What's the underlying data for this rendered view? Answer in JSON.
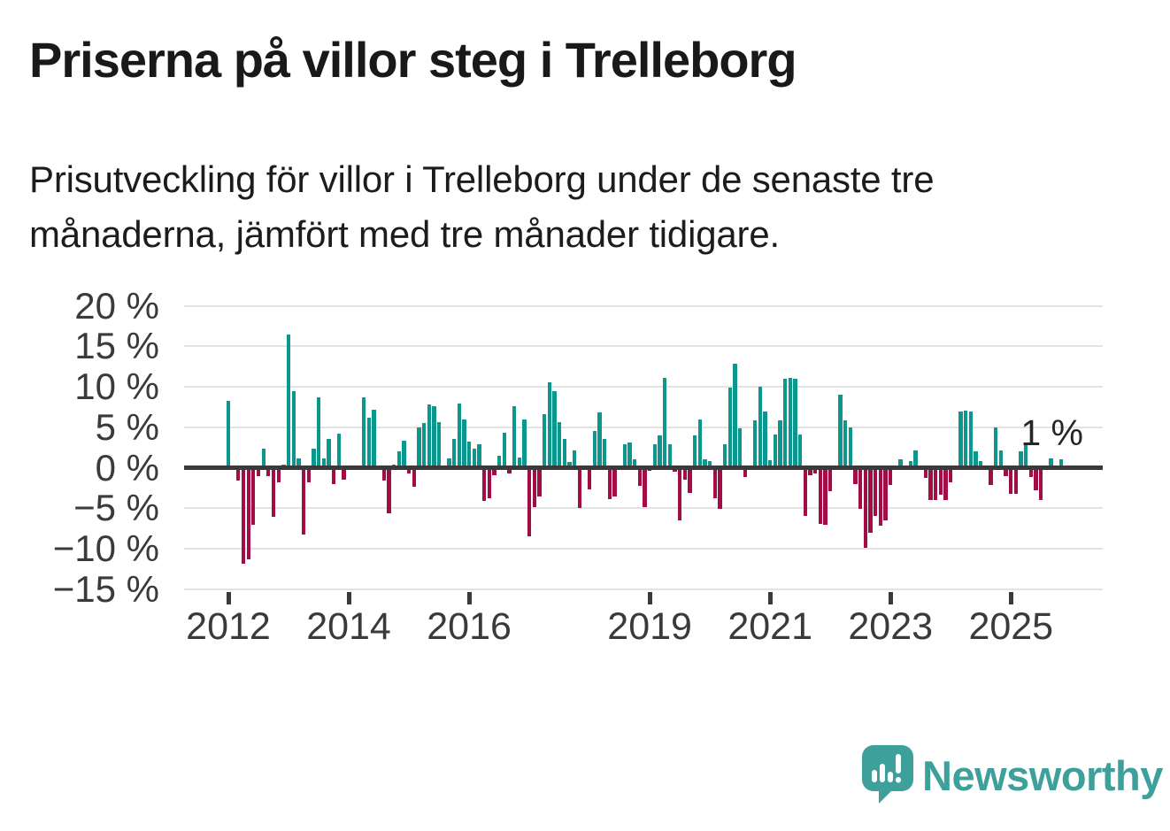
{
  "header": {
    "title": "Priserna på villor steg i Trelleborg",
    "subtitle": "Prisutveckling för villor i Trelleborg under de senaste tre månaderna, jämfört med tre månader tidigare."
  },
  "annotation": {
    "last_value_label": "1 %"
  },
  "brand": {
    "name": "Newsworthy"
  },
  "colors": {
    "positive_bar": "#0b968e",
    "negative_bar": "#a30d46",
    "zero_line": "#3a3a3a",
    "gridline": "#e3e3e3",
    "axis_text": "#3a3a3a",
    "annotation_text": "#262626",
    "brand_teal": "#3ea09b"
  },
  "chart_data": {
    "type": "bar",
    "title": "Prisutveckling för villor i Trelleborg, 3 månader jämfört med 3 månader tidigare",
    "unit": "%",
    "x_start": "2012-01",
    "x_frequency": "monthly",
    "ylim": [
      -15,
      20
    ],
    "grid": true,
    "y_ticks": [
      20,
      15,
      10,
      5,
      0,
      -5,
      -10,
      -15
    ],
    "y_tick_labels": [
      "20 %",
      "15 %",
      "10 %",
      "5 %",
      "0 %",
      "−5 %",
      "−10 %",
      "−15 %"
    ],
    "x_ticks": [
      {
        "label": "2012",
        "month_index": 0
      },
      {
        "label": "2014",
        "month_index": 24
      },
      {
        "label": "2016",
        "month_index": 48
      },
      {
        "label": "2019",
        "month_index": 84
      },
      {
        "label": "2021",
        "month_index": 108
      },
      {
        "label": "2023",
        "month_index": 132
      },
      {
        "label": "2025",
        "month_index": 156
      }
    ],
    "values": [
      8.3,
      0,
      -1.6,
      -11.9,
      -11.3,
      -7.1,
      -1.0,
      2.3,
      -1.0,
      -6.1,
      -1.8,
      0.4,
      16.4,
      9.5,
      1.1,
      -8.2,
      -1.8,
      2.3,
      8.7,
      1.1,
      3.5,
      -2.0,
      4.2,
      -1.5,
      0,
      0,
      0,
      8.7,
      6.2,
      7.2,
      0,
      -1.6,
      -5.6,
      0.4,
      2.0,
      3.3,
      -0.7,
      -2.3,
      5.0,
      5.5,
      7.8,
      7.6,
      5.6,
      0,
      1.2,
      3.5,
      7.9,
      6.0,
      3.2,
      2.4,
      2.9,
      -4.1,
      -3.8,
      -0.9,
      1.5,
      4.3,
      -0.7,
      7.6,
      1.3,
      6.0,
      -8.5,
      -4.9,
      -3.5,
      6.6,
      10.6,
      9.5,
      5.6,
      3.6,
      0.7,
      2.1,
      -5.0,
      0,
      -2.7,
      4.5,
      6.8,
      3.5,
      -3.9,
      -3.6,
      0,
      2.9,
      3.1,
      1.0,
      -2.2,
      -4.9,
      -0.4,
      2.9,
      4.0,
      11.1,
      2.9,
      -0.5,
      -6.5,
      -1.5,
      -3.1,
      4.0,
      6.0,
      1.0,
      0.8,
      -3.8,
      -5.1,
      2.9,
      9.9,
      12.9,
      4.9,
      -1.1,
      0,
      5.9,
      10.0,
      6.9,
      0.9,
      4.1,
      5.9,
      11.0,
      11.1,
      11.0,
      4.1,
      -6.0,
      -0.9,
      -0.7,
      -6.9,
      -7.1,
      -2.9,
      0,
      9.0,
      5.9,
      5.0,
      -2.0,
      -5.1,
      -9.9,
      -8.0,
      -6.0,
      -7.2,
      -6.5,
      -2.1,
      0,
      1.0,
      0,
      0.8,
      2.1,
      0,
      -1.3,
      -4.0,
      -4.0,
      -3.3,
      -4.0,
      -1.8,
      0,
      6.9,
      7.0,
      6.9,
      2.0,
      0.8,
      0,
      -2.1,
      5.0,
      2.1,
      -1.0,
      -3.2,
      -3.2,
      2.0,
      3.0,
      -1.2,
      -2.8,
      -4.0,
      0,
      1.1,
      0,
      1.0
    ],
    "last_value_label": "1 %",
    "legend": null
  }
}
